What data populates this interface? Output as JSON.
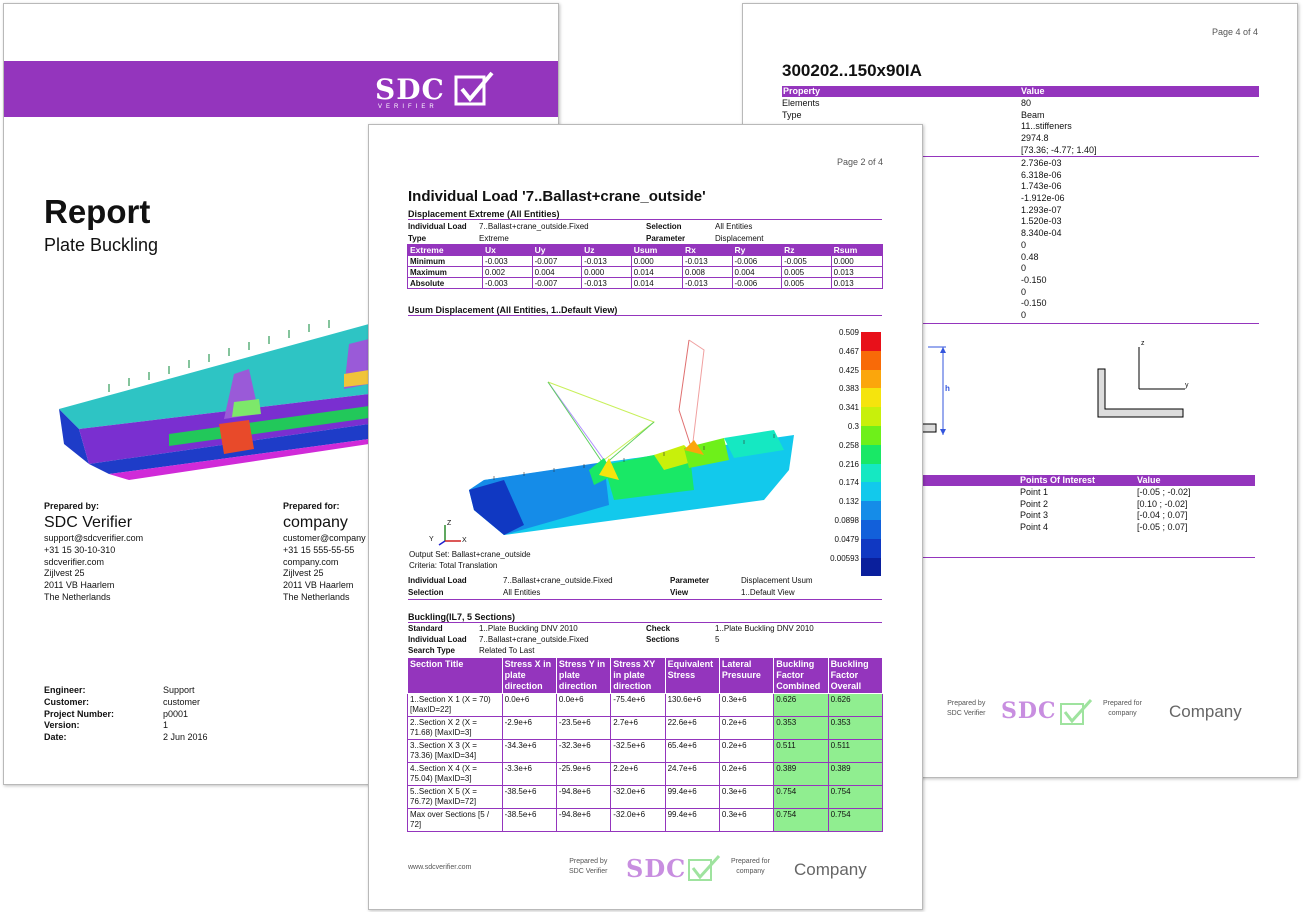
{
  "cover": {
    "title": "Report",
    "subtitle": "Plate Buckling",
    "prepared_by_label": "Prepared by:",
    "prepared_by_name": "SDC Verifier",
    "prepared_by_lines": [
      "support@sdcverifier.com",
      "+31 15 30-10-310",
      "sdcverifier.com",
      "Zijlvest 25",
      "2011 VB Haarlem",
      "The Netherlands"
    ],
    "prepared_for_label": "Prepared for:",
    "prepared_for_name": "company",
    "prepared_for_lines": [
      "customer@company",
      "+31 15 555-55-55",
      "company.com",
      "Zijlvest 25",
      "2011 VB Haarlem",
      "The Netherlands"
    ],
    "meta": [
      {
        "label": "Engineer:",
        "value": "Support"
      },
      {
        "label": "Customer:",
        "value": "customer"
      },
      {
        "label": "Project Number:",
        "value": "p0001"
      },
      {
        "label": "Version:",
        "value": "1"
      },
      {
        "label": "Date:",
        "value": "2 Jun 2016"
      }
    ]
  },
  "logo": {
    "text": "SDC",
    "sub": "VERIFIER"
  },
  "colors": {
    "accent": "#9435bd",
    "ok": "#90ee90"
  },
  "back": {
    "page": "Page 4 of 4",
    "title": "300202..150x90IA",
    "prop_header": "Property",
    "value_header": "Value",
    "props": [
      "Elements",
      "Type"
    ],
    "values": [
      "80",
      "Beam",
      "11..stiffeners",
      "2974.8",
      "[73.36; -4.77; 1.40]"
    ],
    "values2": [
      "2.736e-03",
      "6.318e-06",
      "1.743e-06",
      "-1.912e-06",
      "1.293e-07",
      "1.520e-03",
      "8.340e-04",
      "0",
      "0.48",
      "0",
      "-0.150",
      "0",
      "-0.150",
      "0"
    ],
    "h_label": "h",
    "axis_z": "z",
    "axis_y": "y",
    "poi_header": "Points Of Interest",
    "poi_value_header": "Value",
    "poi": [
      {
        "name": "Point 1",
        "value": "[-0.05 ; -0.02]"
      },
      {
        "name": "Point 2",
        "value": "[0.10 ; -0.02]"
      },
      {
        "name": "Point 3",
        "value": "[-0.04 ; 0.07]"
      },
      {
        "name": "Point 4",
        "value": "[-0.05 ; 0.07]"
      }
    ],
    "footer_prepared_by": [
      "Prepared by",
      "SDC Verifier"
    ],
    "footer_prepared_for": [
      "Prepared for",
      "company"
    ],
    "footer_company": "Company"
  },
  "front": {
    "page": "Page 2 of 4",
    "title": "Individual Load '7..Ballast+crane_outside'",
    "disp_section": "Displacement Extreme (All Entities)",
    "disp_info": {
      "individual_load_label": "Individual Load",
      "individual_load": "7..Ballast+crane_outside.Fixed",
      "selection_label": "Selection",
      "selection": "All Entities",
      "type_label": "Type",
      "type": "Extreme",
      "parameter_label": "Parameter",
      "parameter": "Displacement"
    },
    "disp_headers": [
      "Extreme",
      "Ux",
      "Uy",
      "Uz",
      "Usum",
      "Rx",
      "Ry",
      "Rz",
      "Rsum"
    ],
    "disp_rows": [
      [
        "Minimum",
        "-0.003",
        "-0.007",
        "-0.013",
        "0.000",
        "-0.013",
        "-0.006",
        "-0.005",
        "0.000"
      ],
      [
        "Maximum",
        "0.002",
        "0.004",
        "0.000",
        "0.014",
        "0.008",
        "0.004",
        "0.005",
        "0.013"
      ],
      [
        "Absolute",
        "-0.003",
        "-0.007",
        "-0.013",
        "0.014",
        "-0.013",
        "-0.006",
        "0.005",
        "0.013"
      ]
    ],
    "usum_section": "Usum Displacement (All Entities, 1..Default View)",
    "legend": [
      "0.509",
      "0.467",
      "0.425",
      "0.383",
      "0.341",
      "0.3",
      "0.258",
      "0.216",
      "0.174",
      "0.132",
      "0.0898",
      "0.0479",
      "0.00593"
    ],
    "legend_colors": [
      "#e8101a",
      "#f86a08",
      "#fba60c",
      "#f5e40d",
      "#c8f00b",
      "#6ef01a",
      "#19e866",
      "#15e8c2",
      "#12c9ec",
      "#158ce8",
      "#1260da",
      "#1038c2",
      "#0a1f9c"
    ],
    "output_set": "Output Set: Ballast+crane_outside",
    "criteria": "Criteria: Total Translation",
    "axis_x": "X",
    "axis_y": "Y",
    "axis_z": "Z",
    "usum_info": {
      "individual_load_label": "Individual Load",
      "individual_load": "7..Ballast+crane_outside.Fixed",
      "parameter_label": "Parameter",
      "parameter": "Displacement Usum",
      "selection_label": "Selection",
      "selection": "All Entities",
      "view_label": "View",
      "view": "1..Default View"
    },
    "buck_section": "Buckling(IL7, 5 Sections)",
    "buck_info": {
      "standard_label": "Standard",
      "standard": "1..Plate Buckling DNV 2010",
      "check_label": "Check",
      "check": "1..Plate Buckling DNV 2010",
      "individual_load_label": "Individual Load",
      "individual_load": "7..Ballast+crane_outside.Fixed",
      "sections_label": "Sections",
      "sections": "5",
      "search_type_label": "Search Type",
      "search_type": "Related To Last"
    },
    "buck_headers": [
      "Section Title",
      "Stress X in plate direction",
      "Stress Y in plate direction",
      "Stress XY in plate direction",
      "Equivalent Stress",
      "Lateral Presuure",
      "Buckling Factor Combined",
      "Buckling Factor Overall"
    ],
    "buck_rows": [
      [
        "1..Section X 1 (X = 70) [MaxID=22]",
        "0.0e+6",
        "0.0e+6",
        "-75.4e+6",
        "130.6e+6",
        "0.3e+6",
        "0.626",
        "0.626"
      ],
      [
        "2..Section X 2 (X = 71.68) [MaxID=3]",
        "-2.9e+6",
        "-23.5e+6",
        "2.7e+6",
        "22.6e+6",
        "0.2e+6",
        "0.353",
        "0.353"
      ],
      [
        "3..Section X 3 (X = 73.36) [MaxID=34]",
        "-34.3e+6",
        "-32.3e+6",
        "-32.5e+6",
        "65.4e+6",
        "0.2e+6",
        "0.511",
        "0.511"
      ],
      [
        "4..Section X 4 (X = 75.04) [MaxID=3]",
        "-3.3e+6",
        "-25.9e+6",
        "2.2e+6",
        "24.7e+6",
        "0.2e+6",
        "0.389",
        "0.389"
      ],
      [
        "5..Section X 5 (X = 76.72) [MaxID=72]",
        "-38.5e+6",
        "-94.8e+6",
        "-32.0e+6",
        "99.4e+6",
        "0.3e+6",
        "0.754",
        "0.754"
      ],
      [
        "Max over Sections [5 / 72]",
        "-38.5e+6",
        "-94.8e+6",
        "-32.0e+6",
        "99.4e+6",
        "0.3e+6",
        "0.754",
        "0.754"
      ]
    ],
    "footer_url": "www.sdcverifier.com",
    "footer_prepared_by": [
      "Prepared by",
      "SDC Verifier"
    ],
    "footer_prepared_for": [
      "Prepared for",
      "company"
    ],
    "footer_company": "Company"
  }
}
